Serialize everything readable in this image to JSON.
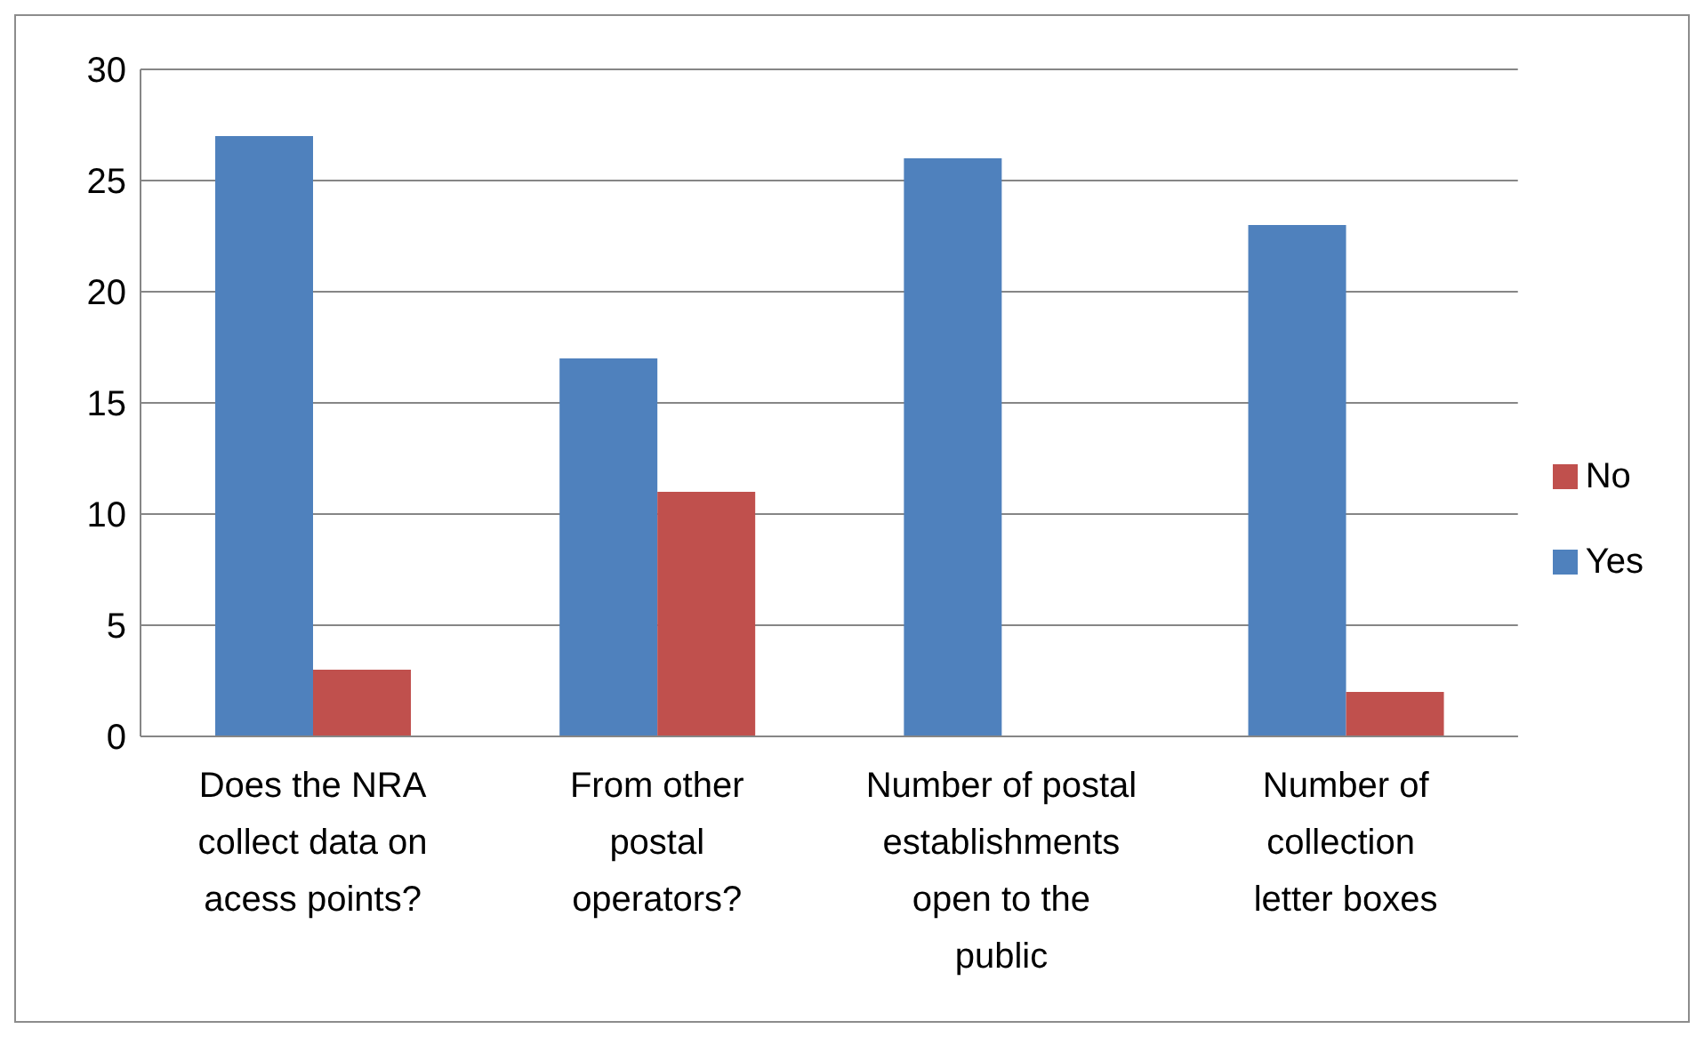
{
  "chart_data": {
    "type": "bar",
    "categories": [
      "Does the NRA collect data on acess points?",
      "From other postal operators?",
      "Number of postal establishments open to the public",
      "Number of collection  letter boxes"
    ],
    "series": [
      {
        "name": "Yes",
        "color": "#4f81bd",
        "values": [
          27,
          17,
          26,
          23
        ]
      },
      {
        "name": "No",
        "color": "#c0504d",
        "values": [
          3,
          11,
          null,
          2
        ]
      }
    ],
    "ylim": [
      0,
      30
    ],
    "yticks": [
      0,
      5,
      10,
      15,
      20,
      25,
      30
    ],
    "grid": "y",
    "legend": "right"
  }
}
